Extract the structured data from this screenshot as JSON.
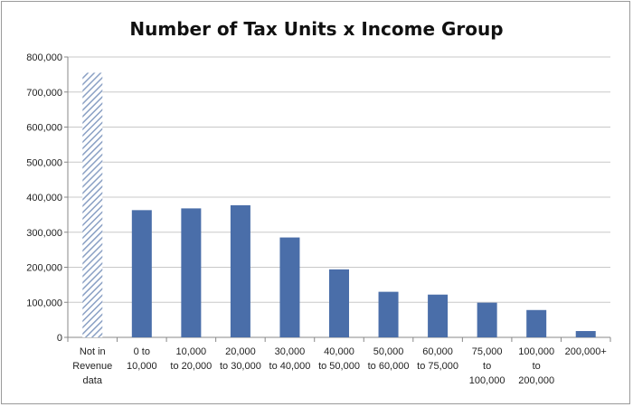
{
  "chart_data": {
    "type": "bar",
    "title": "Number of Tax Units x Income Group",
    "xlabel": "",
    "ylabel": "",
    "ylim": [
      0,
      800000
    ],
    "y_ticks": [
      "0",
      "100,000",
      "200,000",
      "300,000",
      "400,000",
      "500,000",
      "600,000",
      "700,000",
      "800,000"
    ],
    "y_tick_values": [
      0,
      100000,
      200000,
      300000,
      400000,
      500000,
      600000,
      700000,
      800000
    ],
    "grid": true,
    "categories": [
      [
        "Not in",
        "Revenue",
        "data"
      ],
      [
        "0 to",
        "10,000"
      ],
      [
        "10,000",
        "to 20,000"
      ],
      [
        "20,000",
        "to 30,000"
      ],
      [
        "30,000",
        "to 40,000"
      ],
      [
        "40,000",
        "to 50,000"
      ],
      [
        "50,000",
        "to 60,000"
      ],
      [
        "60,000",
        "to 75,000"
      ],
      [
        "75,000",
        "to",
        "100,000"
      ],
      [
        "100,000",
        "to",
        "200,000"
      ],
      [
        "200,000+"
      ]
    ],
    "values": [
      755000,
      363000,
      368000,
      377000,
      285000,
      194000,
      130000,
      122000,
      99000,
      78000,
      18000
    ],
    "bar_styles": [
      "hatched",
      "solid",
      "solid",
      "solid",
      "solid",
      "solid",
      "solid",
      "solid",
      "solid",
      "solid",
      "solid"
    ],
    "colors": {
      "bar": "#4a6ea9",
      "hatch": "#8aa0c4",
      "grid": "#c8c8c8",
      "axis": "#888888"
    }
  }
}
